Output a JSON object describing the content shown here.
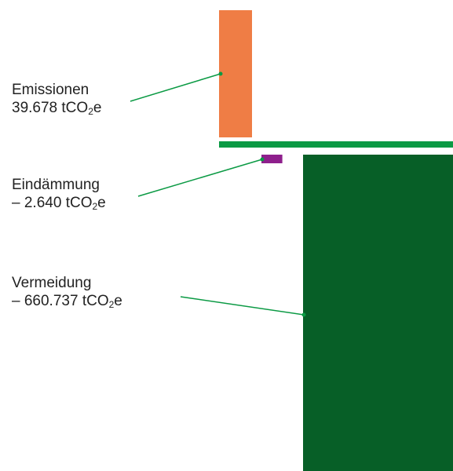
{
  "chart_data": {
    "type": "bar",
    "unit_prefix": "tCO",
    "unit_subscript": "2",
    "unit_suffix": "e",
    "baseline_color": "#0b9a44",
    "leader_color": "#0b9a44",
    "series": [
      {
        "name": "Emissionen",
        "value_label": "39.678",
        "value": 39678,
        "color": "#ef7d45"
      },
      {
        "name": "Eindämmung",
        "value_label": "– 2.640",
        "value": -2640,
        "color": "#8e1f8c"
      },
      {
        "name": "Vermeidung",
        "value_label": "– 660.737",
        "value": -660737,
        "color": "#075f27"
      }
    ]
  }
}
